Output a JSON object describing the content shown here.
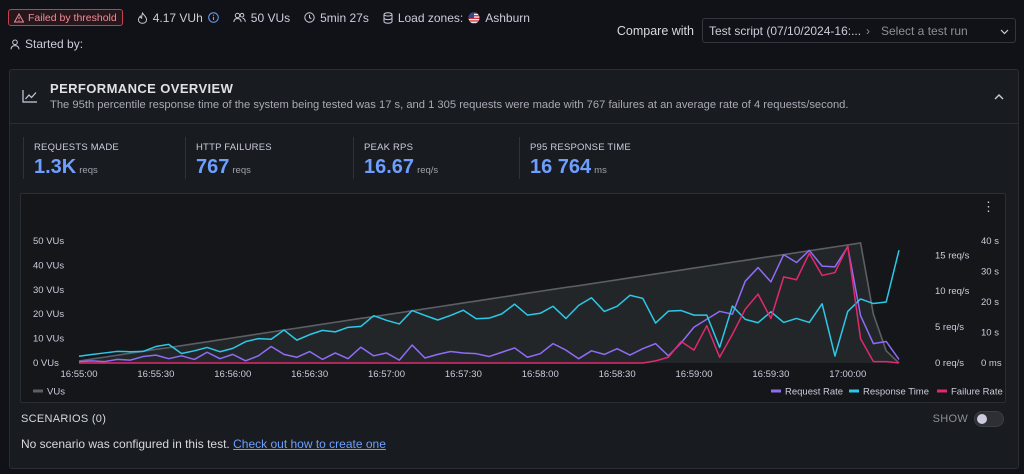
{
  "header": {
    "status_badge": "Failed by threshold",
    "vuh": "4.17 VUh",
    "vus": "50 VUs",
    "duration": "5min 27s",
    "load_zones_label": "Load zones:",
    "load_zone": "Ashburn",
    "started_by": "Started by:"
  },
  "compare": {
    "label": "Compare with",
    "selected_script": "Test script (07/10/2024-16:...",
    "run_placeholder": "Select a test run"
  },
  "overview": {
    "title": "PERFORMANCE OVERVIEW",
    "summary": "The 95th percentile response time of the system being tested was 17 s, and 1 305 requests were made with 767 failures at an average rate of 4 requests/second.",
    "stats": [
      {
        "label": "REQUESTS MADE",
        "value": "1.3K",
        "unit": "reqs"
      },
      {
        "label": "HTTP FAILURES",
        "value": "767",
        "unit": "reqs"
      },
      {
        "label": "PEAK RPS",
        "value": "16.67",
        "unit": "req/s"
      },
      {
        "label": "P95 RESPONSE TIME",
        "value": "16 764",
        "unit": "ms"
      }
    ]
  },
  "chart_data": {
    "type": "line",
    "x": [
      "16:55:00",
      "16:55:05",
      "16:55:10",
      "16:55:15",
      "16:55:20",
      "16:55:25",
      "16:55:30",
      "16:55:35",
      "16:55:40",
      "16:55:45",
      "16:55:50",
      "16:55:55",
      "16:56:00",
      "16:56:05",
      "16:56:10",
      "16:56:15",
      "16:56:20",
      "16:56:25",
      "16:56:30",
      "16:56:35",
      "16:56:40",
      "16:56:45",
      "16:56:50",
      "16:56:55",
      "16:57:00",
      "16:57:05",
      "16:57:10",
      "16:57:15",
      "16:57:20",
      "16:57:25",
      "16:57:30",
      "16:57:35",
      "16:57:40",
      "16:57:45",
      "16:57:50",
      "16:57:55",
      "16:58:00",
      "16:58:05",
      "16:58:10",
      "16:58:15",
      "16:58:20",
      "16:58:25",
      "16:58:30",
      "16:58:35",
      "16:58:40",
      "16:58:45",
      "16:58:50",
      "16:58:55",
      "16:59:00",
      "16:59:05",
      "16:59:10",
      "16:59:15",
      "16:59:20",
      "16:59:25",
      "16:59:30",
      "16:59:35",
      "16:59:40",
      "16:59:45",
      "16:59:50",
      "16:59:55",
      "17:00:00",
      "17:00:05",
      "17:00:10",
      "17:00:15",
      "17:00:20"
    ],
    "x_ticks": [
      "16:55:00",
      "16:55:30",
      "16:56:00",
      "16:56:30",
      "16:57:00",
      "16:57:30",
      "16:58:00",
      "16:58:30",
      "16:59:00",
      "16:59:30",
      "17:00:00"
    ],
    "left_axis": {
      "ticks": [
        "0 VUs",
        "10 VUs",
        "20 VUs",
        "30 VUs",
        "40 VUs",
        "50 VUs"
      ],
      "ylim": [
        0,
        50
      ]
    },
    "right_axis_rps": {
      "ticks": [
        "0 req/s",
        "5 req/s",
        "10 req/s",
        "15 req/s"
      ],
      "ylim": [
        0,
        17
      ]
    },
    "right_axis_time": {
      "ticks": [
        "0 ms",
        "10 s",
        "20 s",
        "30 s",
        "40 s"
      ],
      "ylim": [
        0,
        40
      ]
    },
    "series": [
      {
        "name": "VUs",
        "axis": "left",
        "color": "#5c5e66",
        "values": [
          0.8,
          1.6,
          2.4,
          3.2,
          4.0,
          4.8,
          5.6,
          6.3,
          7.1,
          7.9,
          8.7,
          9.5,
          10.3,
          11.1,
          11.9,
          12.7,
          13.5,
          14.3,
          15.1,
          15.9,
          16.7,
          17.5,
          18.3,
          19.0,
          19.8,
          20.6,
          21.4,
          22.2,
          23.0,
          23.8,
          24.6,
          25.4,
          26.2,
          27.0,
          27.8,
          28.6,
          29.4,
          30.2,
          31.0,
          31.7,
          32.5,
          33.3,
          34.1,
          34.9,
          35.7,
          36.5,
          37.3,
          38.1,
          38.9,
          39.7,
          40.5,
          41.3,
          42.1,
          42.9,
          43.7,
          44.4,
          45.2,
          46.0,
          46.8,
          47.6,
          48.4,
          49.2,
          20,
          5,
          0
        ]
      },
      {
        "name": "Request Rate",
        "axis": "rps",
        "color": "#8f6cf5",
        "values": [
          0.2,
          0.3,
          0.2,
          0.5,
          0.4,
          0.9,
          1.1,
          0.6,
          1.0,
          0.5,
          1.5,
          0.6,
          1.2,
          0.3,
          1.0,
          2.3,
          1.2,
          0.8,
          1.6,
          0.5,
          1.4,
          0.6,
          2.2,
          1.0,
          1.4,
          0.4,
          2.5,
          0.7,
          1.2,
          1.6,
          1.4,
          1.3,
          0.9,
          1.5,
          2.1,
          0.8,
          1.3,
          2.7,
          1.8,
          0.6,
          1.7,
          1.2,
          2.0,
          1.1,
          2.0,
          2.7,
          1.0,
          2.8,
          5.0,
          6.1,
          7.2,
          6.8,
          11.4,
          13.3,
          11.3,
          15.1,
          14.0,
          15.7,
          13.5,
          13.4,
          16.2,
          6.6,
          2.7,
          3.0,
          0.5
        ]
      },
      {
        "name": "Response Time",
        "axis": "time",
        "color": "#2dc8e8",
        "values": [
          2.2,
          2.8,
          3.3,
          3.8,
          3.7,
          3.8,
          5.4,
          6.1,
          3.1,
          4.0,
          5.1,
          3.7,
          4.8,
          7.0,
          8.0,
          7.8,
          10.8,
          7.5,
          9.3,
          10.7,
          10.2,
          11.7,
          12.0,
          15.5,
          14.0,
          12.8,
          17.2,
          15.6,
          14.1,
          15.6,
          17.3,
          14.5,
          14.7,
          16.1,
          19.3,
          15.7,
          16.3,
          18.6,
          14.6,
          18.9,
          21.4,
          16.9,
          18.6,
          22.2,
          21.2,
          13.1,
          17.0,
          17.2,
          15.7,
          15.7,
          5.1,
          18.7,
          14.3,
          13.2,
          16.8,
          13.3,
          14.6,
          13.3,
          19.4,
          2.3,
          16.9,
          21.0,
          19.5,
          20.0,
          37.0
        ]
      },
      {
        "name": "Failure Rate",
        "axis": "rps",
        "color": "#e0296e",
        "values": [
          0,
          0,
          0,
          0,
          0,
          0,
          0,
          0,
          0,
          0,
          0,
          0,
          0,
          0,
          0,
          0,
          0,
          0,
          0,
          0,
          0,
          0,
          0,
          0,
          0,
          0,
          0,
          0,
          0,
          0,
          0,
          0,
          0,
          0,
          0,
          0,
          0,
          0,
          0,
          0,
          0,
          0,
          0,
          0,
          0,
          0.3,
          0.8,
          3.0,
          1.8,
          5.2,
          0.8,
          4.0,
          7.5,
          9.6,
          6.2,
          12.0,
          11.6,
          15.3,
          12.2,
          12.6,
          16.3,
          3.4,
          0.2,
          0.2,
          0
        ]
      }
    ],
    "legend": [
      "Request Rate",
      "Response Time",
      "Failure Rate"
    ],
    "legend_left": "VUs",
    "legend_colors": {
      "VUs": "#5c5e66",
      "Request Rate": "#8f6cf5",
      "Response Time": "#2dc8e8",
      "Failure Rate": "#e0296e"
    }
  },
  "scenarios": {
    "title": "SCENARIOS (0)",
    "show_label": "SHOW",
    "empty_text": "No scenario was configured in this test.",
    "link_text": "Check out how to create one"
  }
}
